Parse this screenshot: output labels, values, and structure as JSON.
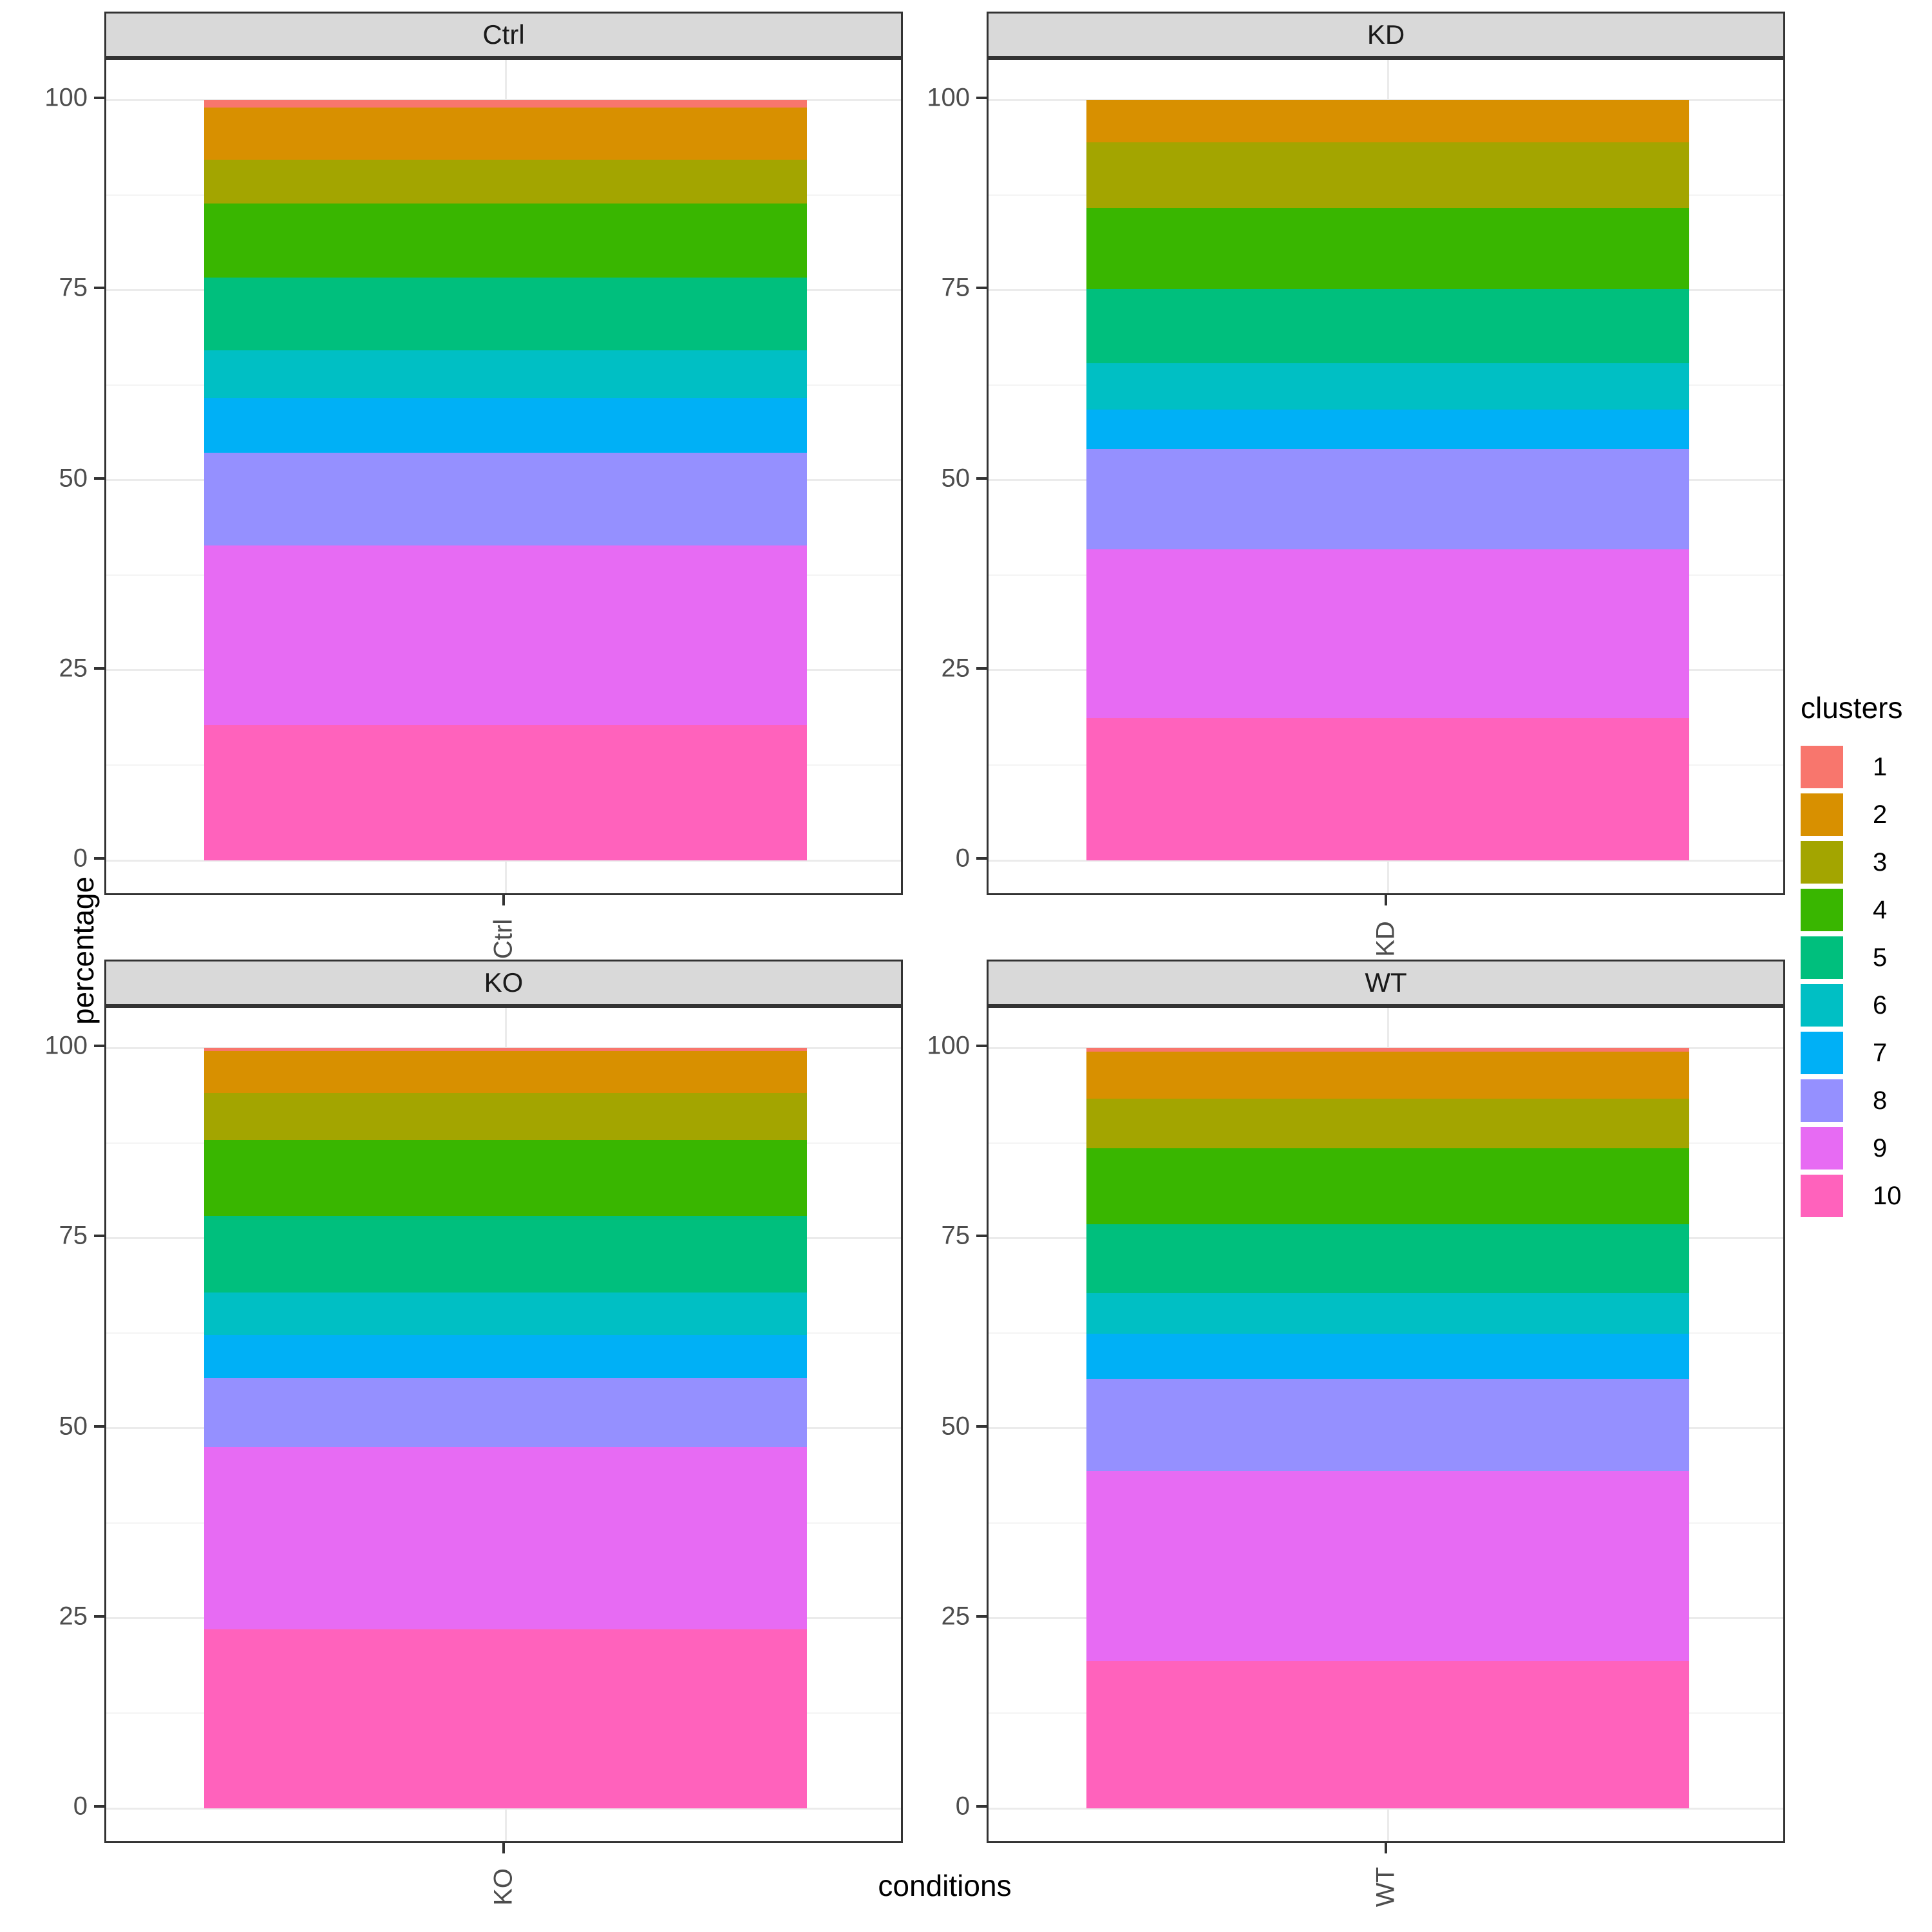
{
  "figure": {
    "background": "#FFFFFF",
    "y_axis_title": "percentage",
    "x_axis_title": "conditions",
    "style": {
      "strip_fill": "#D9D9D9",
      "strip_text_color": "#1A1A1A",
      "panel_border_color": "#333333",
      "grid_major_color": "#EBEBEB",
      "grid_minor_color": "#F4F4F4",
      "tick_text_color": "#4D4D4D",
      "tick_mark_color": "#333333",
      "axis_title_color": "#000000"
    }
  },
  "legend": {
    "title": "clusters",
    "position": "right",
    "items": [
      {
        "label": "1",
        "color": "#F8766D"
      },
      {
        "label": "2",
        "color": "#D89000"
      },
      {
        "label": "3",
        "color": "#A3A500"
      },
      {
        "label": "4",
        "color": "#39B600"
      },
      {
        "label": "5",
        "color": "#00BF7D"
      },
      {
        "label": "6",
        "color": "#00BFC4"
      },
      {
        "label": "7",
        "color": "#00B0F6"
      },
      {
        "label": "8",
        "color": "#9590FF"
      },
      {
        "label": "9",
        "color": "#E76BF3"
      },
      {
        "label": "10",
        "color": "#FF62BC"
      }
    ]
  },
  "chart_data": {
    "type": "bar",
    "stacked": true,
    "orientation": "vertical",
    "title": "",
    "xlabel": "conditions",
    "ylabel": "percentage",
    "ylim": [
      0,
      100
    ],
    "y_major_ticks": [
      0,
      25,
      50,
      75,
      100
    ],
    "y_minor_gridlines": [
      12.5,
      37.5,
      62.5,
      87.5
    ],
    "grid": true,
    "legend_position": "right",
    "facets": [
      "Ctrl",
      "KD",
      "KO",
      "WT"
    ],
    "facet_layout": "2x2 row-major, each facet shows one bar for its own condition",
    "x_tick_label_rotation_deg": -90,
    "clusters": [
      "1",
      "2",
      "3",
      "4",
      "5",
      "6",
      "7",
      "8",
      "9",
      "10"
    ],
    "cluster_colors": [
      "#F8766D",
      "#D89000",
      "#A3A500",
      "#39B600",
      "#00BF7D",
      "#00BFC4",
      "#00B0F6",
      "#9590FF",
      "#E76BF3",
      "#FF62BC"
    ],
    "stack_order": "cluster 1 at top of bar, cluster 10 at bottom",
    "values_percent": {
      "Ctrl": [
        1.0,
        6.9,
        5.7,
        9.8,
        9.5,
        6.3,
        7.2,
        12.2,
        23.6,
        17.8
      ],
      "KD": [
        0.0,
        5.6,
        8.6,
        10.7,
        9.7,
        6.1,
        5.2,
        13.2,
        22.2,
        18.7
      ],
      "KO": [
        0.4,
        5.5,
        6.2,
        10.0,
        10.1,
        5.6,
        5.6,
        9.1,
        24.0,
        23.5
      ],
      "WT": [
        0.5,
        6.2,
        6.5,
        10.0,
        9.1,
        5.3,
        5.9,
        12.1,
        25.0,
        19.4
      ]
    }
  }
}
